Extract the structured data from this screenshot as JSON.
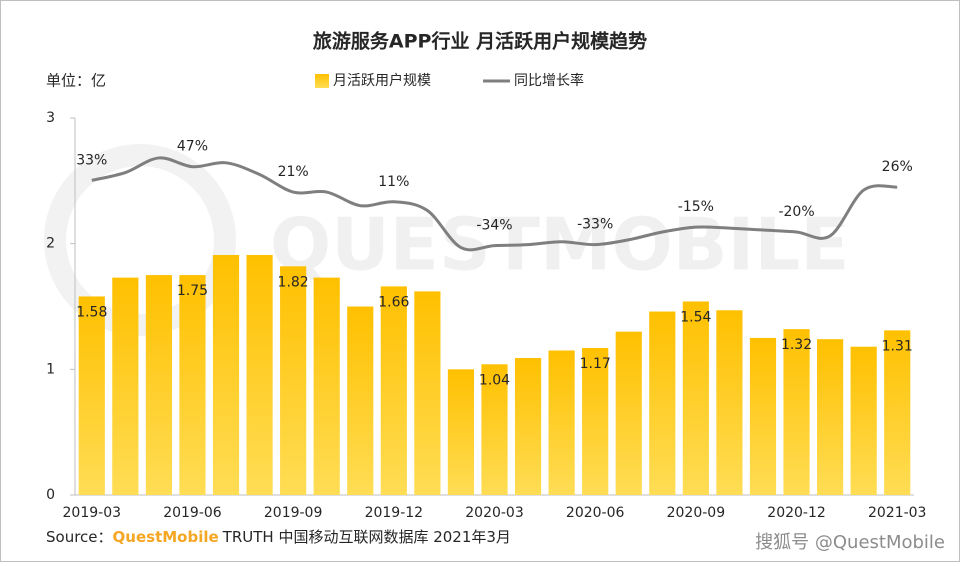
{
  "chart_data": {
    "type": "bar_line",
    "title": "旅游服务APP行业 月活跃用户规模趋势",
    "unit_label": "单位：亿",
    "watermark": "QUESTMOBILE",
    "source": {
      "prefix": "Source：",
      "brand": "QuestMobile",
      "text": "TRUTH 中国移动互联网数据库 2021年3月"
    },
    "credit": "搜狐号 @QuestMobile",
    "legend": "top",
    "categories": [
      "2019-03",
      null,
      null,
      "2019-06",
      null,
      null,
      "2019-09",
      null,
      null,
      "2019-12",
      null,
      null,
      "2020-03",
      null,
      null,
      "2020-06",
      null,
      null,
      "2020-09",
      null,
      null,
      "2020-12",
      null,
      null,
      "2021-03"
    ],
    "ylim": [
      0,
      3
    ],
    "yticks": [
      0,
      1,
      2,
      3
    ],
    "y2lim": [
      -290,
      97
    ],
    "series": [
      {
        "name": "月活跃用户规模",
        "type": "bar",
        "color": "#ffc000",
        "values": [
          1.58,
          1.73,
          1.75,
          1.75,
          1.91,
          1.91,
          1.82,
          1.73,
          1.5,
          1.66,
          1.62,
          1.0,
          1.04,
          1.09,
          1.15,
          1.17,
          1.3,
          1.46,
          1.54,
          1.47,
          1.25,
          1.32,
          1.24,
          1.18,
          1.31
        ],
        "value_labels": [
          "1.58",
          null,
          null,
          "1.75",
          null,
          null,
          "1.82",
          null,
          null,
          "1.66",
          null,
          null,
          "1.04",
          null,
          null,
          "1.17",
          null,
          null,
          "1.54",
          null,
          null,
          "1.32",
          null,
          null,
          "1.31"
        ]
      },
      {
        "name": "同比增长率",
        "type": "line",
        "axis": "y2",
        "color": "#7f7f7f",
        "values": [
          33,
          41,
          56,
          47,
          51,
          39,
          21,
          21,
          7,
          11,
          2,
          -36,
          -34,
          -33,
          -30,
          -33,
          -28,
          -20,
          -15,
          -16,
          -18,
          -20,
          -24,
          23,
          26
        ],
        "value_labels": [
          "33%",
          null,
          null,
          "47%",
          null,
          null,
          "21%",
          null,
          null,
          "11%",
          null,
          null,
          "-34%",
          null,
          null,
          "-33%",
          null,
          null,
          "-15%",
          null,
          null,
          "-20%",
          null,
          null,
          "26%"
        ]
      }
    ]
  }
}
